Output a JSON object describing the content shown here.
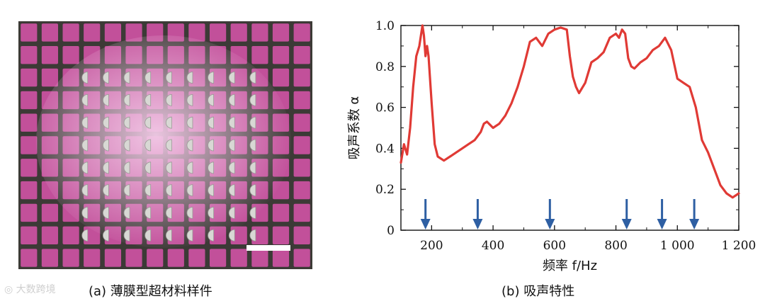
{
  "figure": {
    "caption_a": "(a) 薄膜型超材料样件",
    "caption_b": "(b) 吸声特性",
    "watermark": "大数跨境"
  },
  "photo": {
    "frame_color": "#3c3a36",
    "cell_color": "#c2509a",
    "glow_color": "#f3cce8",
    "disk_color": "#d8d8d4",
    "scale_bar_color": "#ffffff"
  },
  "chart_data": {
    "type": "line",
    "xlabel": "频率 f/Hz",
    "ylabel": "吸声系数 α",
    "xlim": [
      100,
      1200
    ],
    "ylim": [
      0,
      1.0
    ],
    "xticks": [
      200,
      400,
      600,
      800,
      1000,
      1200
    ],
    "xtick_labels": [
      "200",
      "400",
      "600",
      "800",
      "1 000",
      "1 200"
    ],
    "yticks": [
      0,
      0.2,
      0.4,
      0.6,
      0.8,
      1.0
    ],
    "ytick_labels": [
      "0",
      "0.2",
      "0.4",
      "0.6",
      "0.8",
      "1.0"
    ],
    "line_color": "#e03a35",
    "arrow_color": "#2e5fa3",
    "series": [
      {
        "name": "吸声系数",
        "x": [
          100,
          110,
          120,
          130,
          140,
          150,
          160,
          170,
          175,
          180,
          185,
          190,
          200,
          210,
          220,
          240,
          260,
          280,
          300,
          320,
          340,
          360,
          370,
          380,
          400,
          420,
          440,
          460,
          480,
          500,
          520,
          540,
          560,
          580,
          600,
          620,
          640,
          650,
          660,
          670,
          680,
          700,
          720,
          740,
          760,
          780,
          800,
          810,
          820,
          830,
          840,
          850,
          860,
          880,
          900,
          920,
          940,
          960,
          980,
          1000,
          1020,
          1040,
          1060,
          1080,
          1100,
          1120,
          1140,
          1160,
          1180,
          1200
        ],
        "y": [
          0.33,
          0.42,
          0.37,
          0.5,
          0.7,
          0.85,
          0.9,
          1.0,
          0.95,
          0.85,
          0.9,
          0.85,
          0.62,
          0.42,
          0.36,
          0.34,
          0.36,
          0.38,
          0.4,
          0.42,
          0.44,
          0.48,
          0.52,
          0.53,
          0.5,
          0.52,
          0.56,
          0.62,
          0.7,
          0.8,
          0.92,
          0.94,
          0.9,
          0.96,
          0.98,
          0.99,
          0.98,
          0.85,
          0.75,
          0.7,
          0.67,
          0.72,
          0.82,
          0.84,
          0.87,
          0.94,
          0.96,
          0.94,
          0.98,
          0.96,
          0.84,
          0.8,
          0.79,
          0.82,
          0.84,
          0.88,
          0.9,
          0.94,
          0.88,
          0.74,
          0.72,
          0.7,
          0.6,
          0.44,
          0.38,
          0.3,
          0.22,
          0.18,
          0.16,
          0.18
        ]
      }
    ],
    "arrows": [
      180,
      350,
      585,
      835,
      950,
      1055
    ]
  }
}
